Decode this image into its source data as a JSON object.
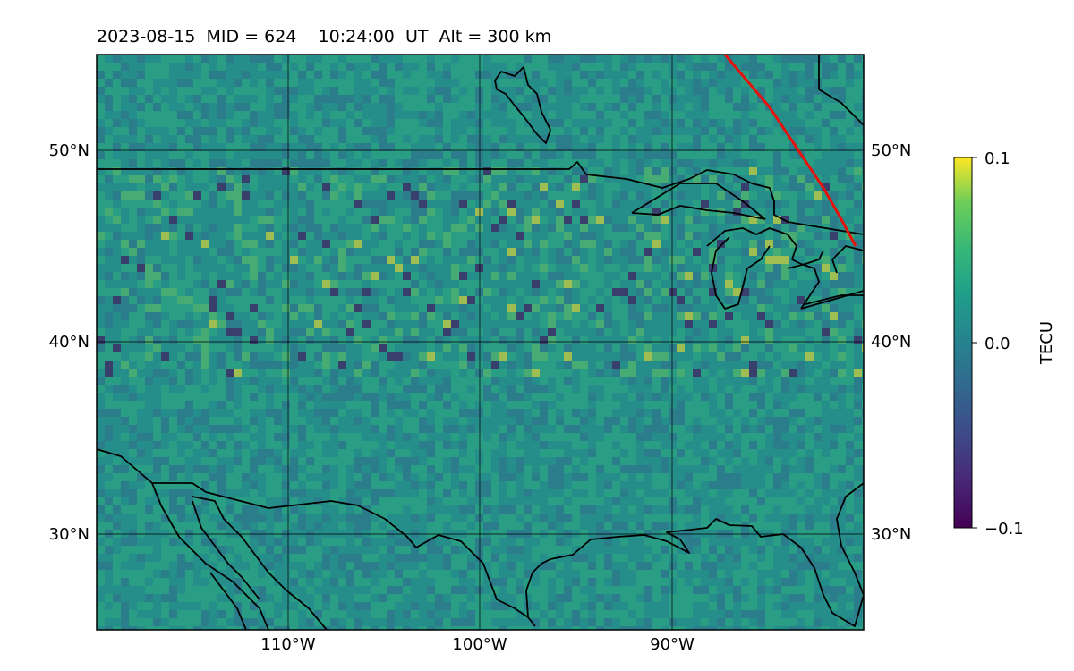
{
  "title": "2023-08-15  MID = 624    10:24:00  UT  Alt = 300 km",
  "map": {
    "lon_range": [
      -120,
      -80
    ],
    "lat_range": [
      25,
      55
    ],
    "lat_ticks": [
      {
        "value": 50,
        "label": "50°N"
      },
      {
        "value": 40,
        "label": "40°N"
      },
      {
        "value": 30,
        "label": "30°N"
      }
    ],
    "lon_ticks": [
      {
        "value": -110,
        "label": "110°W"
      },
      {
        "value": -100,
        "label": "100°W"
      },
      {
        "value": -90,
        "label": "90°W"
      }
    ],
    "gridlines": true,
    "terminator_color": "#e8120c",
    "background_color": "#2a8a8a"
  },
  "colorbar": {
    "label": "TECU",
    "min": -0.1,
    "max": 0.1,
    "tick_labels": [
      "0.1",
      "0.0",
      "−0.1"
    ],
    "colormap": "viridis"
  }
}
